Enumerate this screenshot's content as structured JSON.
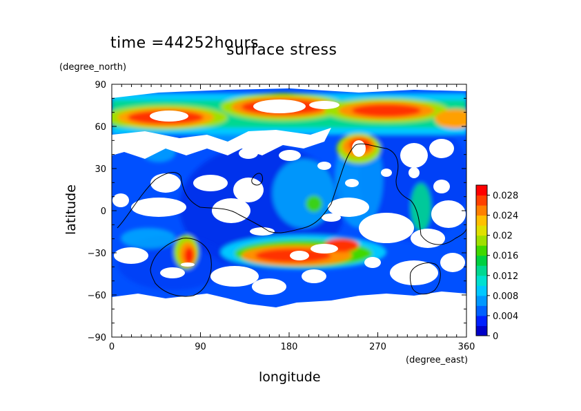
{
  "header": {
    "time_label": "time =44252hours",
    "title": "surface stress"
  },
  "axes": {
    "x_label": "longitude",
    "y_label": "latitude",
    "x_unit": "(degree_east)",
    "y_unit": "(degree_north)"
  },
  "chart_data": {
    "type": "heatmap",
    "title": "surface stress",
    "xlabel": "longitude",
    "ylabel": "latitude",
    "xlim": [
      0,
      360
    ],
    "ylim": [
      -90,
      90
    ],
    "xticks": [
      0,
      90,
      180,
      270,
      360
    ],
    "yticks": [
      -90,
      -60,
      -30,
      0,
      30,
      60,
      90
    ],
    "colorbar": {
      "ticks": [
        "0",
        "0.004",
        "0.008",
        "0.012",
        "0.016",
        "0.02",
        "0.024",
        "0.028"
      ],
      "min": 0,
      "max": 0.03,
      "colors": [
        "#0000c8",
        "#0020ff",
        "#0060ff",
        "#0098ff",
        "#00c8ff",
        "#00e0d0",
        "#00d890",
        "#00d040",
        "#40d800",
        "#a0e000",
        "#e0e000",
        "#ffc000",
        "#ff8000",
        "#ff4000",
        "#ff0000"
      ]
    },
    "features": [
      {
        "lon": 30,
        "lat": 65,
        "value": 0.028
      },
      {
        "lon": 60,
        "lat": 65,
        "value": 0.028
      },
      {
        "lon": 180,
        "lat": 68,
        "value": 0.028
      },
      {
        "lon": 290,
        "lat": 66,
        "value": 0.028
      },
      {
        "lon": 350,
        "lat": 65,
        "value": 0.028
      },
      {
        "lon": 260,
        "lat": 42,
        "value": 0.028
      },
      {
        "lon": 75,
        "lat": -30,
        "value": 0.028
      },
      {
        "lon": 170,
        "lat": -30,
        "value": 0.028
      },
      {
        "lon": 215,
        "lat": -25,
        "value": 0.028
      }
    ]
  }
}
